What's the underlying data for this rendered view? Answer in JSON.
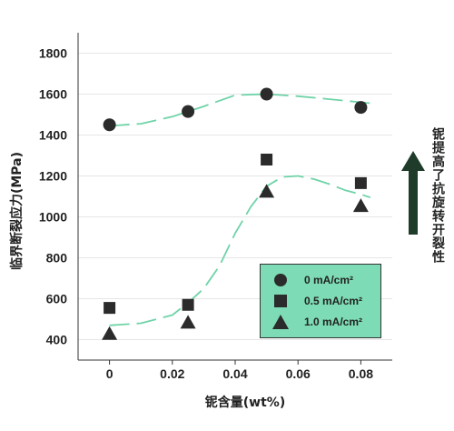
{
  "chart_data": {
    "type": "scatter",
    "ylabel": "临界断裂应力(MPa)",
    "xlabel": "铌含量(wt%)",
    "xlim": [
      -0.01,
      0.09
    ],
    "ylim": [
      300,
      1900
    ],
    "xticks": [
      "0",
      "0.02",
      "0.04",
      "0.06",
      "0.08"
    ],
    "xtick_values": [
      0,
      0.02,
      0.04,
      0.06,
      0.08
    ],
    "yticks": [
      "400",
      "600",
      "800",
      "1000",
      "1200",
      "1400",
      "1600",
      "1800"
    ],
    "ytick_values": [
      400,
      600,
      800,
      1000,
      1200,
      1400,
      1600,
      1800
    ],
    "grid": "horizontal",
    "legend_position": "bottom-right",
    "series": [
      {
        "name": "0 mA/cm²",
        "marker": "circle",
        "x": [
          0,
          0.025,
          0.05,
          0.08
        ],
        "y": [
          1450,
          1515,
          1600,
          1535
        ]
      },
      {
        "name": "0.5 mA/cm²",
        "marker": "square",
        "x": [
          0,
          0.025,
          0.05,
          0.08
        ],
        "y": [
          555,
          570,
          1280,
          1165
        ]
      },
      {
        "name": "1.0 mA/cm²",
        "marker": "triangle",
        "x": [
          0,
          0.025,
          0.05,
          0.08
        ],
        "y": [
          430,
          485,
          1125,
          1055
        ]
      }
    ],
    "trend_lines": [
      {
        "x": [
          0,
          0.01,
          0.02,
          0.03,
          0.04,
          0.05,
          0.06,
          0.07,
          0.08,
          0.083
        ],
        "y": [
          1445,
          1455,
          1490,
          1540,
          1595,
          1600,
          1590,
          1575,
          1560,
          1555
        ]
      },
      {
        "x": [
          0,
          0.01,
          0.02,
          0.025,
          0.03,
          0.035,
          0.04,
          0.045,
          0.05,
          0.055,
          0.06,
          0.065,
          0.07,
          0.075,
          0.08,
          0.083
        ],
        "y": [
          470,
          480,
          520,
          580,
          650,
          760,
          920,
          1050,
          1150,
          1195,
          1200,
          1185,
          1160,
          1130,
          1110,
          1095
        ]
      }
    ],
    "colors": {
      "trend": "#6fd3a8",
      "marker": "#2b2b2b",
      "legend_bg": "#7ddcb5",
      "grid": "#e6e6e6",
      "arrow": "#1f3b2a"
    }
  },
  "side_note": "铌提高了抗旋转开裂性"
}
